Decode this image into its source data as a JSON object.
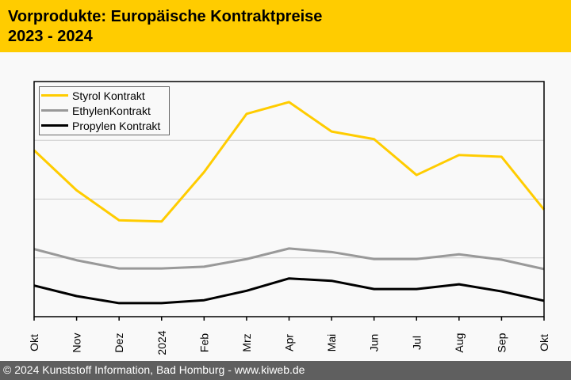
{
  "header": {
    "title_line1": "Vorprodukte: Europäische Kontraktpreise",
    "title_line2": "2023 - 2024",
    "background": "#ffcc00"
  },
  "footer": {
    "text": "© 2024 Kunststoff Information, Bad Homburg - www.kiweb.de"
  },
  "chart_data": {
    "type": "line",
    "title": "Vorprodukte: Europäische Kontraktpreise 2023 - 2024",
    "xlabel": "",
    "ylabel": "",
    "y_axis_labels_shown": false,
    "ylim": [
      0,
      4
    ],
    "grid": true,
    "legend_position": "top-left",
    "categories": [
      "Okt",
      "Nov",
      "Dez",
      "2024",
      "Feb",
      "Mrz",
      "Apr",
      "Mai",
      "Jun",
      "Jul",
      "Aug",
      "Sep",
      "Okt"
    ],
    "series": [
      {
        "name": "Styrol Kontrakt",
        "color": "#ffcc00",
        "values": [
          2.83,
          2.15,
          1.64,
          1.62,
          2.46,
          3.45,
          3.65,
          3.15,
          3.02,
          2.41,
          2.75,
          2.72,
          1.82
        ]
      },
      {
        "name": "EthylenKontrakt",
        "color": "#999999",
        "values": [
          1.15,
          0.96,
          0.82,
          0.82,
          0.85,
          0.98,
          1.16,
          1.1,
          0.98,
          0.98,
          1.06,
          0.97,
          0.81
        ]
      },
      {
        "name": "Propylen Kontrakt",
        "color": "#000000",
        "values": [
          0.53,
          0.35,
          0.23,
          0.23,
          0.28,
          0.44,
          0.65,
          0.61,
          0.47,
          0.47,
          0.55,
          0.43,
          0.27
        ]
      }
    ]
  }
}
